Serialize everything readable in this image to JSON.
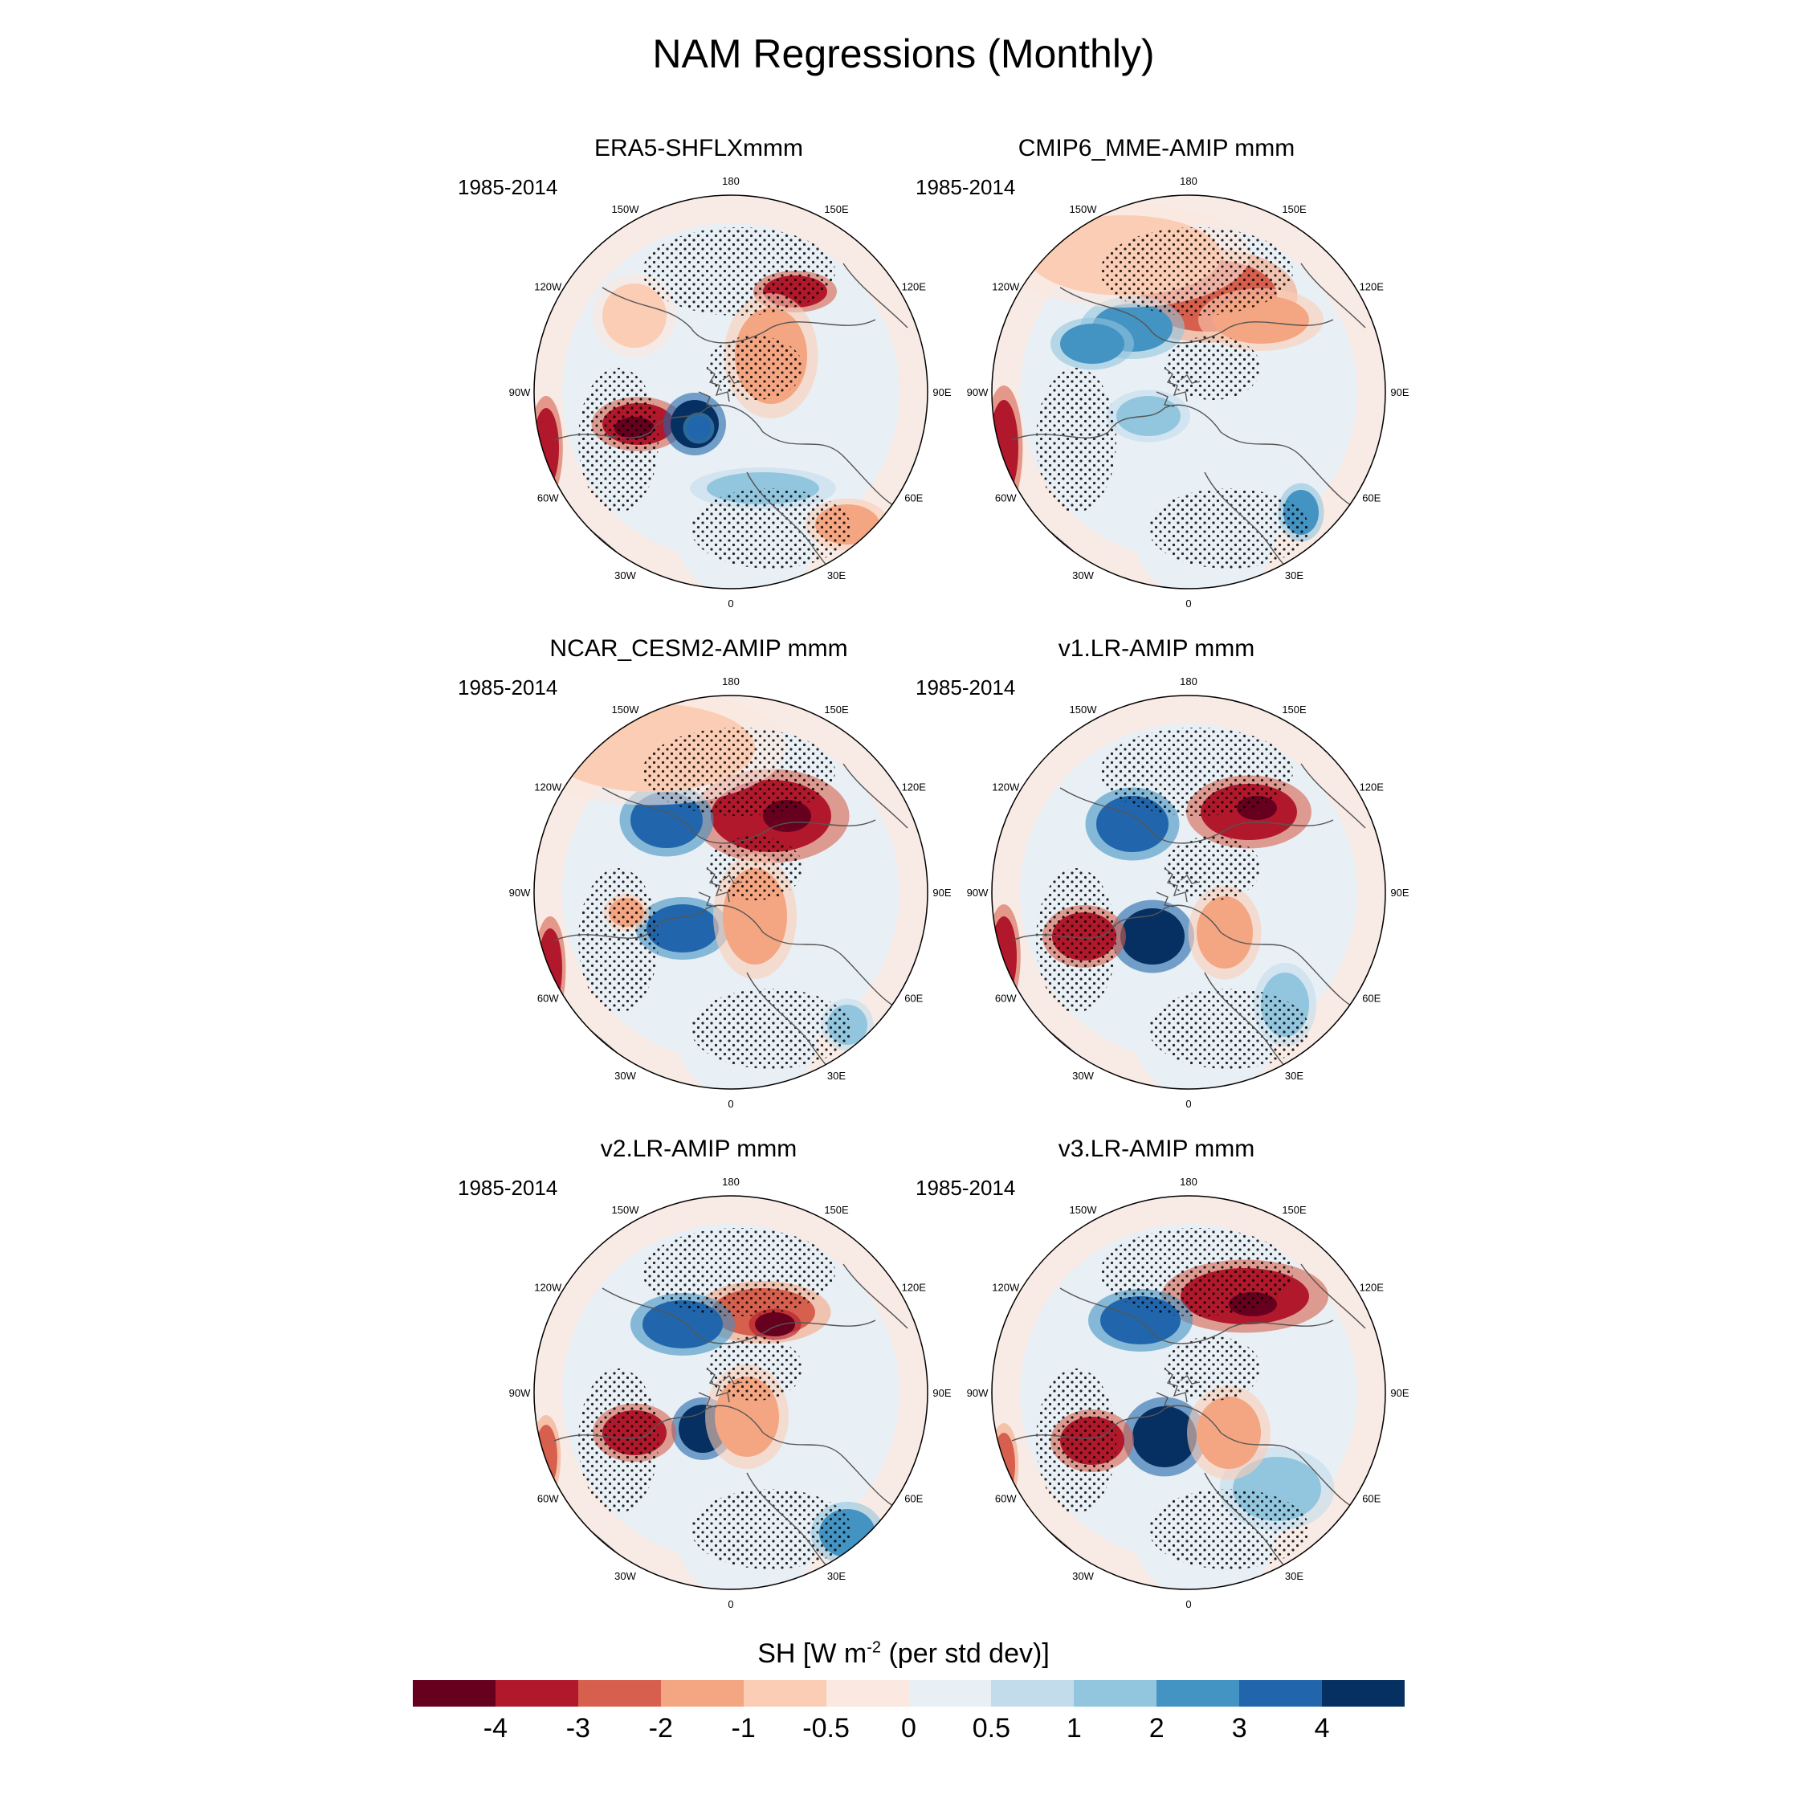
{
  "figure": {
    "title": "NAM Regressions (Monthly)",
    "colorbar_label_prefix": "SH [W m",
    "colorbar_label_exp": "-2",
    "colorbar_label_suffix": " (per std dev)]"
  },
  "colorbar": {
    "colors": [
      "#67001f",
      "#b2182b",
      "#d6604d",
      "#f4a582",
      "#fbcdb5",
      "#fbe8e0",
      "#e8eff5",
      "#c2dcec",
      "#92c5de",
      "#4393c3",
      "#2166ac",
      "#053061"
    ],
    "ticks": [
      "-4",
      "-3",
      "-2",
      "-1",
      "-0.5",
      "0",
      "0.5",
      "1",
      "2",
      "3",
      "4"
    ]
  },
  "lon_labels": [
    "180",
    "150E",
    "120E",
    "90E",
    "60E",
    "30E",
    "0",
    "30W",
    "60W",
    "90W",
    "120W",
    "150W"
  ],
  "panels": [
    {
      "title": "ERA5-SHFLXmmm",
      "period": "1985-2014"
    },
    {
      "title": "CMIP6_MME-AMIP  mmm",
      "period": "1985-2014"
    },
    {
      "title": "NCAR_CESM2-AMIP  mmm",
      "period": "1985-2014"
    },
    {
      "title": "v1.LR-AMIP  mmm",
      "period": "1985-2014"
    },
    {
      "title": "v2.LR-AMIP  mmm",
      "period": "1985-2014"
    },
    {
      "title": "v3.LR-AMIP  mmm",
      "period": "1985-2014"
    }
  ],
  "map_icons": {
    "stipple": "significance-stipple",
    "coast": "coastline"
  }
}
